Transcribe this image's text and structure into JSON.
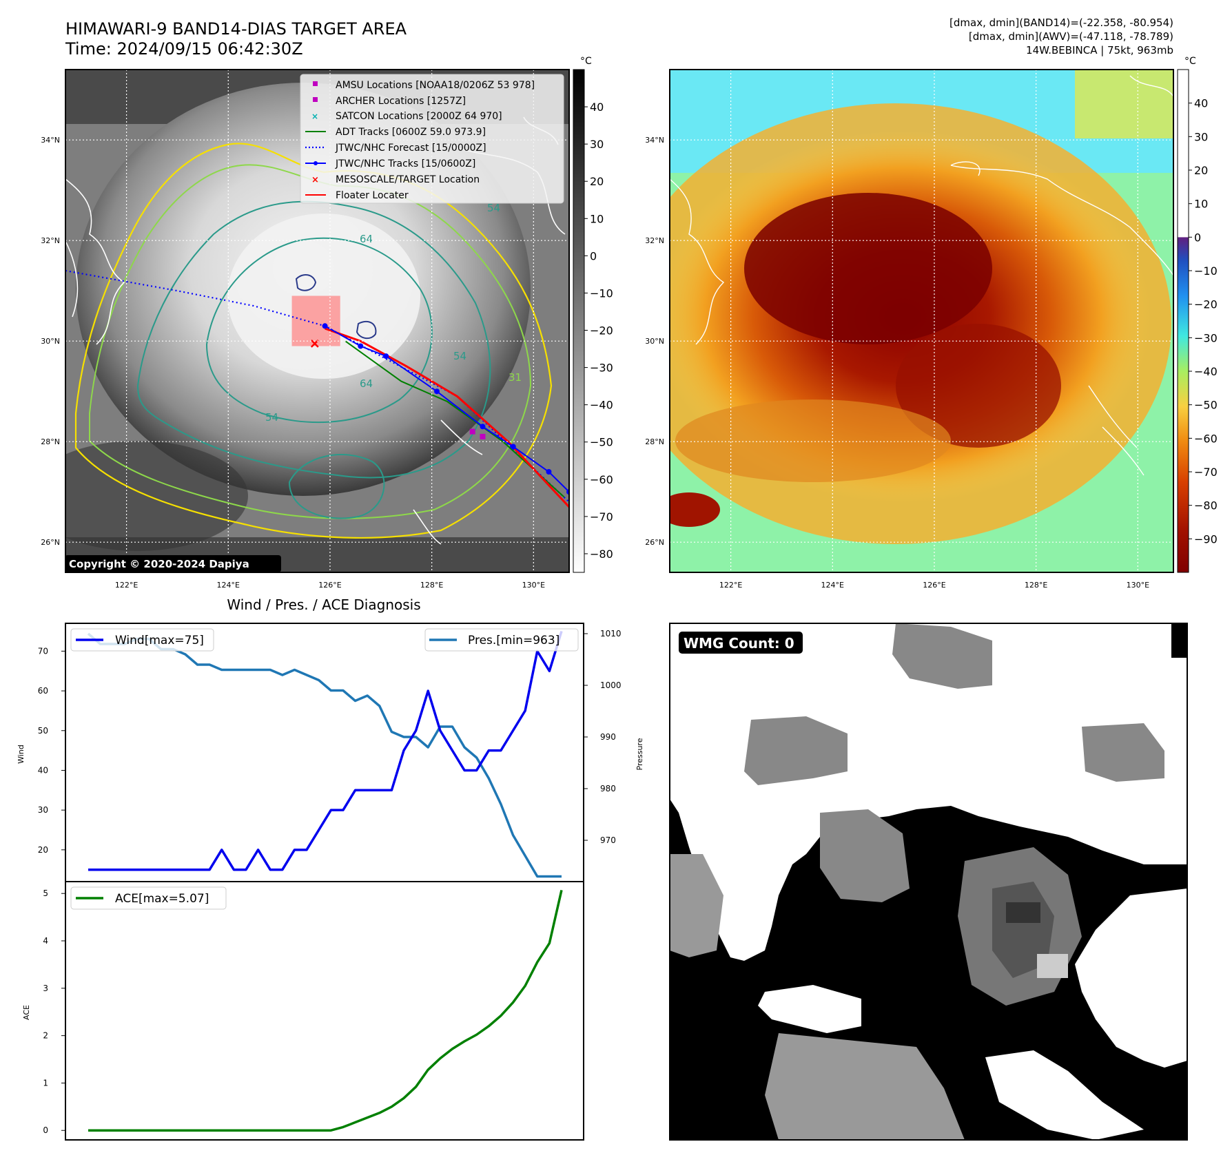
{
  "header": {
    "title": "HIMAWARI-9 BAND14-DIAS TARGET AREA",
    "time": "Time: 2024/09/15 06:42:30Z",
    "stats_band14": "[dmax, dmin](BAND14)=(-22.358, -80.954)",
    "stats_awv": "[dmax, dmin](AWV)=(-47.118, -78.789)",
    "storm": "14W.BEBINCA | 75kt, 963mb"
  },
  "map_axes": {
    "lat_labels": [
      "34°N",
      "32°N",
      "30°N",
      "28°N",
      "26°N"
    ],
    "lat_values": [
      34,
      32,
      30,
      28,
      26
    ],
    "lon_labels": [
      "122°E",
      "124°E",
      "126°E",
      "128°E",
      "130°E"
    ],
    "lon_values": [
      122,
      124,
      126,
      128,
      130
    ],
    "lon_range": [
      120.8,
      130.7
    ],
    "lat_range": [
      25.4,
      35.4
    ],
    "copyright": "Copyright © 2020-2024 Dapiya"
  },
  "legend": {
    "items": [
      "AMSU Locations [NOAA18/0206Z 53 978]",
      "ARCHER Locations [1257Z]",
      "SATCON Locations [2000Z 64 970]",
      "ADT Tracks [0600Z 59.0 973.9]",
      "JTWC/NHC Forecast [15/0000Z]",
      "JTWC/NHC Tracks [15/0600Z]",
      "MESOSCALE/TARGET Location",
      "Floater Locater"
    ],
    "colors": [
      "#c000c0",
      "#c000c0",
      "#00b0b0",
      "#008000",
      "#0000ff",
      "#0000ff",
      "#ff0000",
      "#ff0000"
    ]
  },
  "contours": {
    "labels": [
      "64",
      "54",
      "54",
      "64",
      "31",
      "54"
    ]
  },
  "colorbar_gray": {
    "unit": "°C",
    "ticks": [
      "40",
      "30",
      "20",
      "10",
      "0",
      "−10",
      "−20",
      "−30",
      "−40",
      "−50",
      "−60",
      "−70",
      "−80"
    ],
    "range": [
      -85,
      50
    ]
  },
  "colorbar_color": {
    "unit": "°C",
    "ticks": [
      "40",
      "30",
      "20",
      "10",
      "0",
      "−10",
      "−20",
      "−30",
      "−40",
      "−50",
      "−60",
      "−70",
      "−80",
      "−90"
    ],
    "range": [
      -100,
      50
    ]
  },
  "tracks": {
    "jtwc_forecast": [
      [
        120.8,
        31.4
      ],
      [
        123,
        31.0
      ],
      [
        124.5,
        30.7
      ],
      [
        125.9,
        30.3
      ],
      [
        127,
        29.7
      ],
      [
        128.5,
        28.9
      ],
      [
        130.7,
        26.8
      ]
    ],
    "jtwc_track": [
      [
        125.9,
        30.3
      ],
      [
        126.6,
        29.9
      ],
      [
        127.1,
        29.7
      ],
      [
        128.1,
        29.0
      ],
      [
        129.0,
        28.3
      ],
      [
        129.6,
        27.9
      ],
      [
        130.3,
        27.4
      ],
      [
        130.7,
        27.0
      ]
    ],
    "floater": [
      [
        125.9,
        30.25
      ],
      [
        126.6,
        30.0
      ],
      [
        127.5,
        29.5
      ],
      [
        128.5,
        28.9
      ],
      [
        129.5,
        28.0
      ],
      [
        130.7,
        26.7
      ]
    ],
    "adt": [
      [
        126.3,
        30.0
      ],
      [
        127.4,
        29.2
      ],
      [
        128.3,
        28.8
      ],
      [
        129.4,
        28.0
      ],
      [
        130.6,
        26.9
      ]
    ],
    "amsu": [
      [
        128.8,
        28.2
      ],
      [
        129.0,
        28.1
      ]
    ],
    "target": [
      [
        125.7,
        29.95
      ]
    ],
    "target_box": [
      [
        125.25,
        29.9
      ],
      [
        126.2,
        30.9
      ]
    ]
  },
  "chart_data": [
    {
      "type": "line",
      "title": "Wind / Pres. / ACE Diagnosis",
      "x": [
        0,
        1,
        2,
        3,
        4,
        5,
        6,
        7,
        8,
        9,
        10,
        11,
        12,
        13,
        14,
        15,
        16,
        17,
        18,
        19,
        20,
        21,
        22,
        23,
        24,
        25,
        26,
        27,
        28,
        29,
        30,
        31,
        32,
        33,
        34,
        35,
        36,
        37,
        38,
        39
      ],
      "series": [
        {
          "name": "Wind[max=75]",
          "axis": "left",
          "color": "#0000ee",
          "values": [
            15,
            15,
            15,
            15,
            15,
            15,
            15,
            15,
            15,
            15,
            15,
            20,
            15,
            15,
            20,
            15,
            15,
            20,
            20,
            25,
            30,
            30,
            35,
            35,
            35,
            35,
            45,
            50,
            60,
            50,
            45,
            40,
            40,
            45,
            45,
            50,
            55,
            70,
            65,
            75
          ]
        },
        {
          "name": "Pres.[min=963]",
          "axis": "right",
          "color": "#1f77b4",
          "values": [
            1010,
            1008,
            1008,
            1008,
            1009,
            1009,
            1007,
            1007,
            1006,
            1004,
            1004,
            1003,
            1003,
            1003,
            1003,
            1003,
            1002,
            1003,
            1002,
            1001,
            999,
            999,
            997,
            998,
            996,
            991,
            990,
            990,
            988,
            992,
            992,
            988,
            986,
            982,
            977,
            971,
            967,
            963,
            963,
            963
          ]
        }
      ],
      "ylabel": "Wind",
      "y2label": "Pressure",
      "ylim": [
        12,
        77
      ],
      "y2lim": [
        962,
        1012
      ],
      "yticks": [
        20,
        30,
        40,
        50,
        60,
        70
      ],
      "y2ticks": [
        970,
        980,
        990,
        1000,
        1010
      ]
    },
    {
      "type": "line",
      "x": [
        0,
        1,
        2,
        3,
        4,
        5,
        6,
        7,
        8,
        9,
        10,
        11,
        12,
        13,
        14,
        15,
        16,
        17,
        18,
        19,
        20,
        21,
        22,
        23,
        24,
        25,
        26,
        27,
        28,
        29,
        30,
        31,
        32,
        33,
        34,
        35,
        36,
        37,
        38,
        39
      ],
      "series": [
        {
          "name": "ACE[max=5.07]",
          "color": "#008000",
          "values": [
            0,
            0,
            0,
            0,
            0,
            0,
            0,
            0,
            0,
            0,
            0,
            0,
            0,
            0,
            0,
            0,
            0,
            0,
            0,
            0,
            0,
            0.07,
            0.17,
            0.27,
            0.37,
            0.5,
            0.68,
            0.92,
            1.28,
            1.52,
            1.72,
            1.88,
            2.02,
            2.2,
            2.42,
            2.7,
            3.05,
            3.55,
            3.95,
            5.07
          ]
        }
      ],
      "ylabel": "ACE",
      "ylim": [
        -0.2,
        5.25
      ],
      "yticks": [
        0,
        1,
        2,
        3,
        4,
        5
      ]
    }
  ],
  "wmg": {
    "label": "WMG Count: 0"
  }
}
